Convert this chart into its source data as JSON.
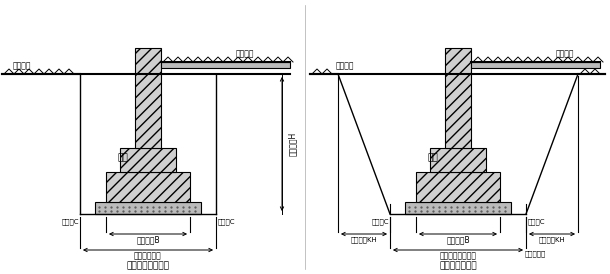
{
  "title1": "不放坡的基槽断面",
  "title2": "放坡的基槽断面",
  "label_jichi1": "基础",
  "label_jichi2": "基础",
  "label_outdoor1": "屎外地坪",
  "label_indoor1": "屎内地坪",
  "label_outdoor2": "屎外地坪",
  "label_indoor2": "屎内地坪",
  "label_depth": "开挖深度H",
  "label_workC_left1": "工作面C",
  "label_workC_right1": "工作面C",
  "label_workC_left2": "工作面C",
  "label_workC_right2": "工作面C",
  "label_basewidth1": "基础宽度B",
  "label_basewidth2": "基础宽度B",
  "label_trench_width1": "基槽开挖宽度",
  "label_trench_width2": "基槽基底开挖宽度",
  "label_slope_left": "放坡宽度KH",
  "label_slope_right": "放坡宽度KH",
  "watermark": "建筑大家园"
}
